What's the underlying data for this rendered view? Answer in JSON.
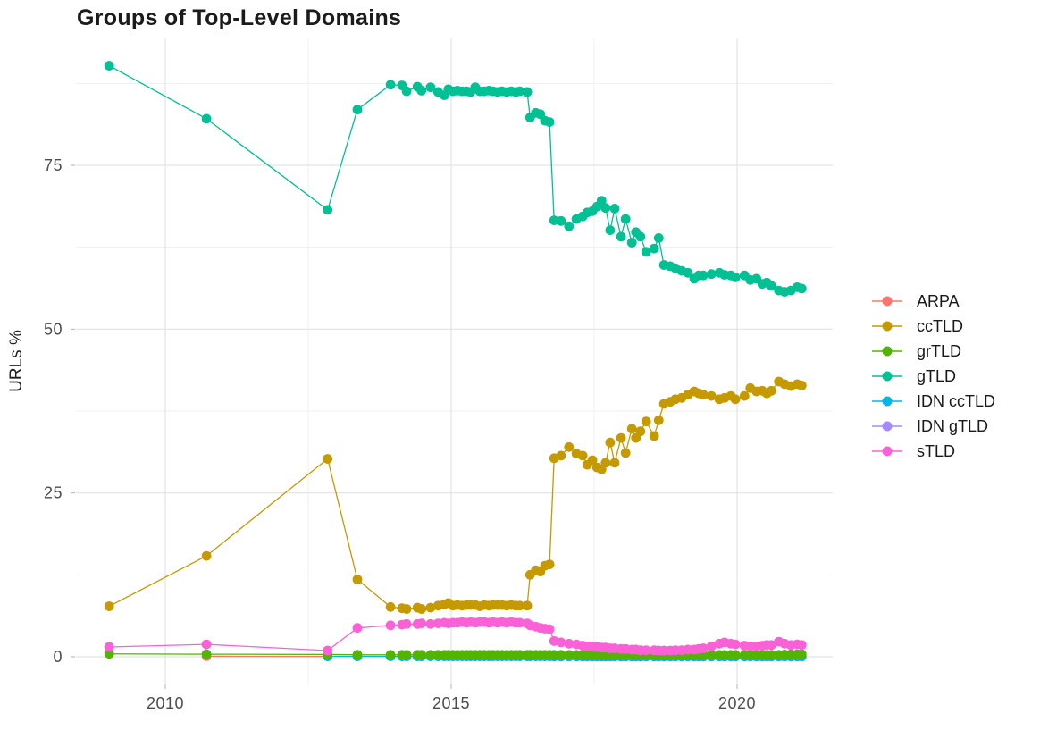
{
  "chart_data": {
    "type": "line",
    "title": "Groups of Top-Level Domains",
    "x_axis": {
      "ticks": [
        2010,
        2015,
        2020
      ],
      "tick_labels": [
        "2010",
        "2015",
        "2020"
      ],
      "minor": [
        2012.5,
        2017.5
      ],
      "domain": [
        2008.438,
        2021.672
      ]
    },
    "y_axis": {
      "title": "URLs %",
      "ticks": [
        0,
        25,
        50,
        75
      ],
      "tick_labels": [
        "0",
        "25",
        "50",
        "75"
      ],
      "minor": [
        12.5,
        37.5,
        62.5,
        87.5
      ],
      "domain": [
        -4.227,
        94.364
      ]
    },
    "legend": {
      "position": "right"
    },
    "grid": {
      "major_color": "#e3e3e3",
      "minor_color": "#efefef"
    },
    "draw_order": [
      "ARPA",
      "IDN gTLD",
      "IDN ccTLD",
      "grTLD",
      "ccTLD",
      "gTLD",
      "sTLD"
    ],
    "x_shared": [
      2009.02,
      2010.72,
      2012.84,
      2013.36,
      2013.94,
      2014.14,
      2014.22,
      2014.41,
      2014.48,
      2014.64,
      2014.77,
      2014.88,
      2014.95,
      2015.03,
      2015.11,
      2015.19,
      2015.27,
      2015.34,
      2015.42,
      2015.5,
      2015.58,
      2015.66,
      2015.73,
      2015.81,
      2015.89,
      2015.97,
      2016.05,
      2016.13,
      2016.2,
      2016.33,
      2016.38,
      2016.48,
      2016.56,
      2016.64,
      2016.72,
      2016.8,
      2016.92,
      2017.06,
      2017.19,
      2017.3,
      2017.38,
      2017.47,
      2017.55,
      2017.63,
      2017.7,
      2017.78,
      2017.86,
      2017.97,
      2018.05,
      2018.16,
      2018.23,
      2018.31,
      2018.41,
      2018.55,
      2018.63,
      2018.72,
      2018.83,
      2018.92,
      2019.03,
      2019.14,
      2019.25,
      2019.33,
      2019.41,
      2019.55,
      2019.69,
      2019.78,
      2019.89,
      2019.97,
      2020.13,
      2020.23,
      2020.34,
      2020.44,
      2020.52,
      2020.6,
      2020.73,
      2020.83,
      2020.94,
      2021.05,
      2021.13
    ],
    "series": [
      {
        "name": "ARPA",
        "color": "#F8766D",
        "x": [
          2010.72,
          2012.84
        ],
        "y": [
          0.1,
          0.05
        ]
      },
      {
        "name": "ccTLD",
        "color": "#C49A00",
        "x_skip": 0,
        "y": [
          7.7,
          15.4,
          30.2,
          11.8,
          7.6,
          7.4,
          7.3,
          7.5,
          7.3,
          7.5,
          7.8,
          8,
          8.2,
          7.8,
          7.9,
          7.8,
          7.9,
          7.9,
          7.9,
          7.7,
          7.9,
          7.8,
          7.9,
          7.9,
          7.9,
          7.8,
          7.9,
          7.8,
          7.8,
          7.8,
          12.5,
          13.2,
          13,
          13.9,
          14.1,
          30.3,
          30.7,
          32,
          31,
          30.7,
          29.3,
          30,
          28.9,
          28.6,
          29.6,
          32.7,
          29.6,
          33.4,
          31.1,
          34.8,
          33.4,
          34.4,
          35.9,
          33.7,
          36.1,
          38.6,
          38.9,
          39.3,
          39.5,
          40,
          40.5,
          40.2,
          40,
          39.8,
          39.3,
          39.5,
          39.8,
          39.3,
          39.8,
          41,
          40.5,
          40.6,
          40.2,
          40.6,
          42,
          41.6,
          41.3,
          41.6,
          41.4
        ]
      },
      {
        "name": "grTLD",
        "color": "#53B400",
        "x_skip": 0,
        "y": [
          0.45,
          0.4,
          0.35,
          0.3,
          0.3,
          0.3,
          0.3,
          0.3,
          0.3,
          0.3,
          0.3,
          0.3,
          0.3,
          0.3,
          0.3,
          0.3,
          0.3,
          0.3,
          0.3,
          0.3,
          0.3,
          0.3,
          0.3,
          0.3,
          0.3,
          0.3,
          0.3,
          0.3,
          0.3,
          0.3,
          0.3,
          0.3,
          0.3,
          0.3,
          0.3,
          0.3,
          0.3,
          0.3,
          0.3,
          0.3,
          0.3,
          0.3,
          0.3,
          0.3,
          0.3,
          0.3,
          0.3,
          0.3,
          0.3,
          0.3,
          0.3,
          0.3,
          0.3,
          0.3,
          0.3,
          0.3,
          0.3,
          0.3,
          0.3,
          0.3,
          0.3,
          0.3,
          0.3,
          0.3,
          0.3,
          0.3,
          0.3,
          0.3,
          0.3,
          0.3,
          0.3,
          0.3,
          0.3,
          0.3,
          0.3,
          0.35,
          0.4,
          0.4,
          0.4
        ]
      },
      {
        "name": "gTLD",
        "color": "#00C094",
        "x_skip": 0,
        "y": [
          90.2,
          82.1,
          68.2,
          83.5,
          87.3,
          87.2,
          86.3,
          87,
          86.4,
          86.9,
          86.2,
          85.7,
          86.6,
          86.3,
          86.4,
          86.3,
          86.3,
          86.2,
          86.9,
          86.3,
          86.3,
          86.4,
          86.3,
          86.2,
          86.3,
          86.2,
          86.3,
          86.2,
          86.3,
          86.2,
          82.3,
          83,
          82.8,
          81.8,
          81.6,
          66.6,
          66.5,
          65.7,
          66.8,
          67.2,
          67.8,
          68,
          68.7,
          69.6,
          68.5,
          65.1,
          68.4,
          64.1,
          66.8,
          63.2,
          64.8,
          64.1,
          61.8,
          62.3,
          63.9,
          59.8,
          59.6,
          59.3,
          58.9,
          58.6,
          57.7,
          58.2,
          58.2,
          58.4,
          58.6,
          58.3,
          58.2,
          57.9,
          58.2,
          57.5,
          57.7,
          56.9,
          57.1,
          56.6,
          55.9,
          55.7,
          55.9,
          56.4,
          56.2
        ]
      },
      {
        "name": "IDN ccTLD",
        "color": "#00B6EB",
        "x_skip": 2,
        "y_const": 0.05
      },
      {
        "name": "IDN gTLD",
        "color": "#A58AFF",
        "x_skip": 35,
        "y_const": 0.02
      },
      {
        "name": "sTLD",
        "color": "#FB61D7",
        "x_skip": 0,
        "y": [
          1.5,
          1.9,
          0.95,
          4.4,
          4.8,
          4.9,
          5,
          5,
          5.1,
          5,
          5.1,
          5.2,
          5.1,
          5.2,
          5.2,
          5.3,
          5.2,
          5.3,
          5.2,
          5.3,
          5.3,
          5.2,
          5.3,
          5.2,
          5.3,
          5.2,
          5.3,
          5.2,
          5.2,
          5.1,
          4.8,
          4.6,
          4.4,
          4.3,
          4.2,
          2.4,
          2.2,
          2,
          1.9,
          1.7,
          1.6,
          1.6,
          1.5,
          1.4,
          1.4,
          1.3,
          1.3,
          1.2,
          1.2,
          1.1,
          1.1,
          1,
          1,
          1,
          0.95,
          0.95,
          0.95,
          1,
          1,
          1.1,
          1.1,
          1.2,
          1.3,
          1.6,
          2,
          2.2,
          2,
          1.9,
          1.7,
          1.6,
          1.6,
          1.7,
          1.8,
          1.8,
          2.3,
          2,
          1.8,
          1.9,
          1.8
        ]
      }
    ]
  }
}
